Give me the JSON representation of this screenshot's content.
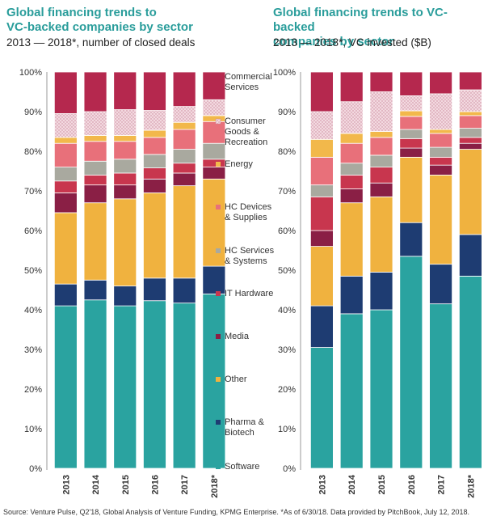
{
  "chart_data": [
    {
      "type": "bar",
      "stacked": true,
      "title": "Global financing trends to VC-backed companies by sector",
      "subtitle": "2013 — 2018*, number of closed deals",
      "categories": [
        "2013",
        "2014",
        "2015",
        "2016",
        "2017",
        "2018*"
      ],
      "ylim": [
        0,
        100
      ],
      "yticks": [
        "0%",
        "10%",
        "20%",
        "30%",
        "40%",
        "50%",
        "60%",
        "70%",
        "80%",
        "90%",
        "100%"
      ],
      "series": [
        {
          "name": "Software",
          "values": [
            41,
            42.5,
            41,
            42.3,
            41.7,
            44
          ]
        },
        {
          "name": "Pharma & Biotech",
          "values": [
            5.5,
            5,
            5,
            5.7,
            6.3,
            7
          ]
        },
        {
          "name": "Other",
          "values": [
            18,
            19.5,
            22,
            21.5,
            23.3,
            22
          ]
        },
        {
          "name": "Media",
          "values": [
            5,
            4.5,
            3.5,
            3.5,
            3.2,
            3
          ]
        },
        {
          "name": "IT Hardware",
          "values": [
            3,
            2.5,
            3,
            2.8,
            2.5,
            2
          ]
        },
        {
          "name": "HC Services & Systems",
          "values": [
            3.5,
            3.5,
            3.5,
            3.4,
            3.5,
            4
          ]
        },
        {
          "name": "HC Devices & Supplies",
          "values": [
            6,
            5,
            4.5,
            4.3,
            5,
            5.5
          ]
        },
        {
          "name": "Energy",
          "values": [
            1.5,
            1.5,
            1.5,
            1.8,
            1.8,
            1.5
          ]
        },
        {
          "name": "Consumer Goods & Recreation",
          "values": [
            6,
            6,
            6.5,
            5,
            4,
            4
          ]
        },
        {
          "name": "Commercial Services",
          "values": [
            10.5,
            10,
            9.5,
            9.7,
            8.7,
            7
          ]
        }
      ]
    },
    {
      "type": "bar",
      "stacked": true,
      "title": "Global financing trends to VC-backed companies by sector",
      "subtitle": "2013 — 2018*, VC invested ($B)",
      "categories": [
        "2013",
        "2014",
        "2015",
        "2016",
        "2017",
        "2018*"
      ],
      "ylim": [
        0,
        100
      ],
      "yticks": [
        "0%",
        "10%",
        "20%",
        "30%",
        "40%",
        "50%",
        "60%",
        "70%",
        "80%",
        "90%",
        "100%"
      ],
      "series": [
        {
          "name": "Software",
          "values": [
            30.5,
            39,
            40,
            53.5,
            41.5,
            48.5
          ]
        },
        {
          "name": "Pharma & Biotech",
          "values": [
            10.5,
            9.5,
            9.5,
            8.5,
            10,
            10.5
          ]
        },
        {
          "name": "Other",
          "values": [
            15,
            18.5,
            19,
            16.5,
            22.5,
            21.5
          ]
        },
        {
          "name": "Media",
          "values": [
            4,
            3.5,
            3.5,
            2.3,
            2.5,
            1.5
          ]
        },
        {
          "name": "IT Hardware",
          "values": [
            8.5,
            3.5,
            4,
            2.4,
            2,
            1.5
          ]
        },
        {
          "name": "HC Services & Systems",
          "values": [
            3,
            3,
            3,
            2.3,
            2.5,
            2.3
          ]
        },
        {
          "name": "HC Devices & Supplies",
          "values": [
            7,
            5,
            4.5,
            3.3,
            3.5,
            3.2
          ]
        },
        {
          "name": "Energy",
          "values": [
            4.5,
            2.5,
            1.5,
            1.4,
            1,
            1
          ]
        },
        {
          "name": "Consumer Goods & Recreation",
          "values": [
            7,
            8,
            10,
            3.8,
            9,
            5.5
          ]
        },
        {
          "name": "Commercial Services",
          "values": [
            10,
            7.5,
            5,
            6,
            5.5,
            4.5
          ]
        }
      ]
    }
  ],
  "legend": [
    {
      "label": "Commercial Services",
      "color": "#b5284e",
      "pattern": false
    },
    {
      "label": "Consumer Goods & Recreation",
      "color": "#f2d6de",
      "pattern": true
    },
    {
      "label": "Energy",
      "color": "#f2b84b",
      "pattern": false
    },
    {
      "label": "HC Devices & Supplies",
      "color": "#e8707a",
      "pattern": false
    },
    {
      "label": "HC Services & Systems",
      "color": "#a9a99f",
      "pattern": false
    },
    {
      "label": "IT Hardware",
      "color": "#c8364e",
      "pattern": false
    },
    {
      "label": "Media",
      "color": "#8a1f45",
      "pattern": false
    },
    {
      "label": "Other",
      "color": "#f0b23f",
      "pattern": false
    },
    {
      "label": "Pharma & Biotech",
      "color": "#1e3c72",
      "pattern": false
    },
    {
      "label": "Software",
      "color": "#2aa3a0",
      "pattern": false
    }
  ],
  "colors": {
    "Software": "#2aa3a0",
    "Pharma & Biotech": "#1e3c72",
    "Other": "#f0b23f",
    "Media": "#8a1f45",
    "IT Hardware": "#c8364e",
    "HC Services & Systems": "#a9a99f",
    "HC Devices & Supplies": "#e8707a",
    "Energy": "#f2b84b",
    "Consumer Goods & Recreation": "#f2d6de",
    "Commercial Services": "#b5284e"
  },
  "left": {
    "title_line1": "Global financing trends to",
    "title_line2": "VC-backed companies by sector",
    "subtitle": "2013 — 2018*, number of closed deals"
  },
  "right": {
    "title_line1": "Global financing trends to VC-backed",
    "title_line2": "companies by sector",
    "subtitle": "2013 — 2018*, VC invested ($B)"
  },
  "source": "Source: Venture Pulse, Q2'18, Global Analysis of Venture Funding, KPMG Enterprise. *As of 6/30/18. Data provided by PitchBook, July 12, 2018."
}
